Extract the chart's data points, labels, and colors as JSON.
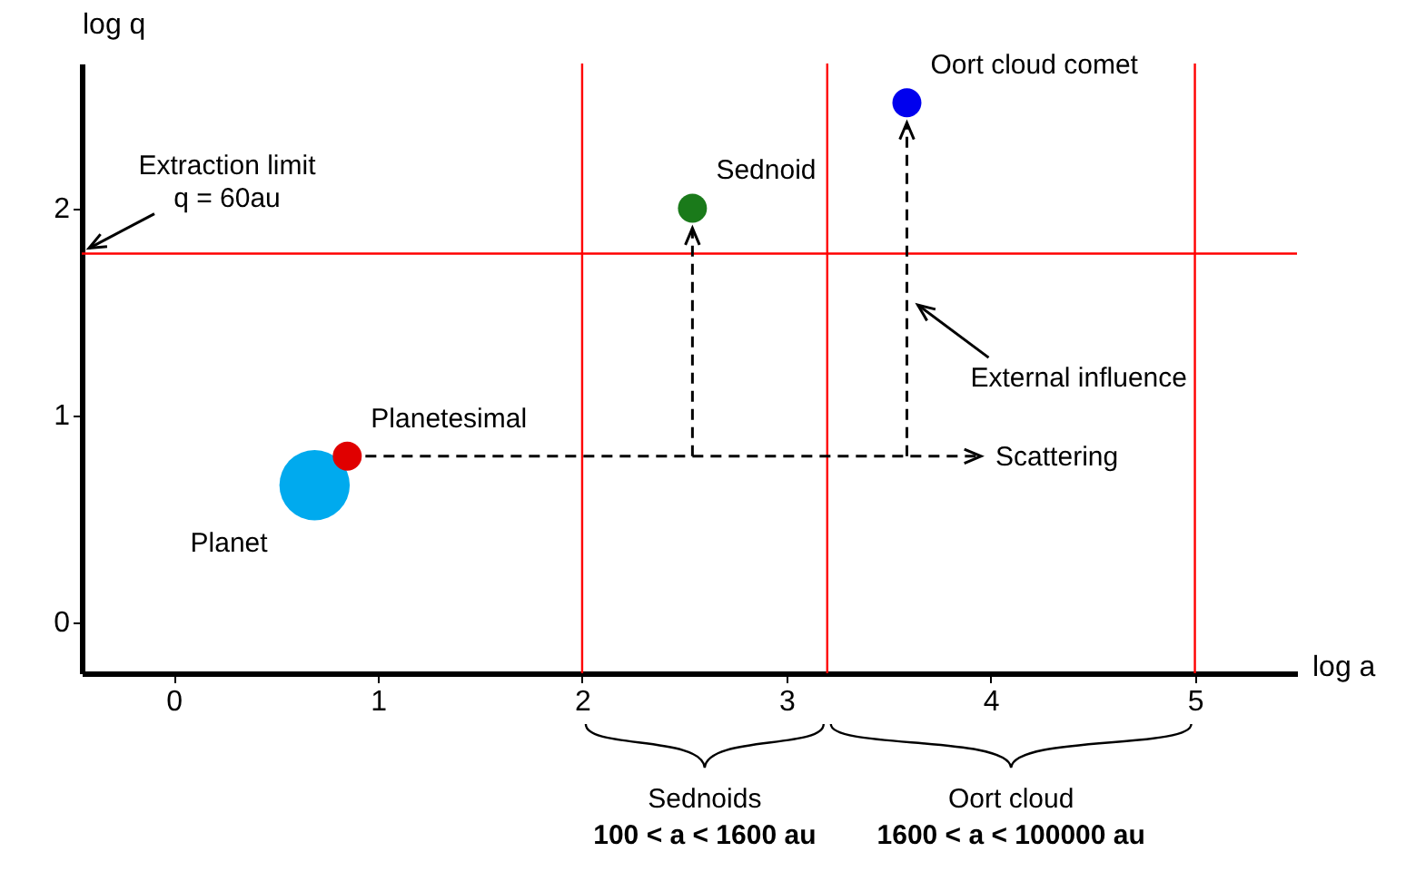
{
  "chart_data": {
    "type": "bubble",
    "xlabel": "log a",
    "ylabel": "log q",
    "xlim": [
      -0.45,
      5.5
    ],
    "ylim": [
      -0.25,
      2.7
    ],
    "xticks": [
      0,
      1,
      2,
      3,
      4,
      5
    ],
    "yticks": [
      0,
      1,
      2
    ],
    "grid": false,
    "legend": false,
    "series": [
      {
        "name": "Planet",
        "color": "#00aaee",
        "x": [
          0.69
        ],
        "values": [
          0.66
        ],
        "sizes": [
          1
        ]
      },
      {
        "name": "Planetesimal",
        "color": "#e00000",
        "x": [
          0.85
        ],
        "values": [
          0.8
        ],
        "sizes": [
          0.17
        ]
      },
      {
        "name": "Sednoid",
        "color": "#1a7a1a",
        "x": [
          2.54
        ],
        "values": [
          2.0
        ],
        "sizes": [
          0.17
        ]
      },
      {
        "name": "Oort cloud comet",
        "color": "#0000ee",
        "x": [
          3.59
        ],
        "values": [
          2.51
        ],
        "sizes": [
          0.17
        ]
      }
    ],
    "ref_lines": [
      {
        "axis": "y",
        "value": 1.78,
        "color": "#ff0000"
      },
      {
        "axis": "x",
        "value": 2,
        "color": "#ff0000"
      },
      {
        "axis": "x",
        "value": 3.2,
        "color": "#ff0000"
      },
      {
        "axis": "x",
        "value": 5,
        "color": "#ff0000"
      }
    ],
    "annotations": [
      "Extraction limit",
      "q = 60au",
      "Scattering",
      "External influence",
      "Sednoids",
      "100 < a < 1600 au",
      "Oort cloud",
      "1600 < a < 100000 au"
    ]
  }
}
